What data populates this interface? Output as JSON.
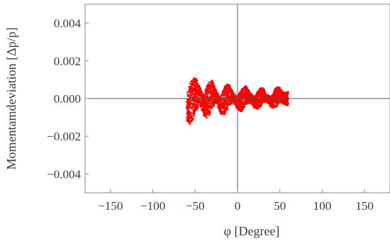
{
  "chart_data": {
    "type": "scatter",
    "xlabel": "φ [Degree]",
    "ylabel": "Momentamdeviation [Δp/p]",
    "xlim": [
      -180,
      180
    ],
    "ylim": [
      -0.005,
      0.005
    ],
    "x_ticks": [
      -150,
      -100,
      -50,
      0,
      50,
      100,
      150
    ],
    "x_tick_labels": [
      "−150",
      "−100",
      "−50",
      "0",
      "50",
      "100",
      "150"
    ],
    "y_ticks": [
      0.004,
      0.002,
      0.0,
      -0.002,
      -0.004
    ],
    "y_tick_labels": [
      "0.004",
      "0.002",
      "0.000",
      "−0.002",
      "−0.004"
    ],
    "marker_color": "#ff0000",
    "axis_color": "#555555",
    "grid": false,
    "series": [
      {
        "envelope": {
          "x": [
            -60,
            -55,
            -50,
            -45,
            -40,
            -35,
            -30,
            -25,
            -20,
            -15,
            -10,
            -5,
            0,
            5,
            10,
            15,
            20,
            25,
            30,
            35,
            40,
            45,
            50,
            55,
            60
          ],
          "y_upper": [
            0.0003,
            0.0009,
            0.0012,
            0.0007,
            0.0002,
            0.0008,
            0.001,
            0.0004,
            0.0001,
            0.0007,
            0.0008,
            0.0003,
            0.0001,
            0.0005,
            0.0007,
            0.0003,
            0.0001,
            0.0005,
            0.0006,
            0.0002,
            0.0001,
            0.0006,
            0.0006,
            0.0003,
            0.0004
          ],
          "y_lower": [
            -0.0012,
            -0.0014,
            -0.0008,
            -0.0003,
            -0.0009,
            -0.0011,
            -0.0005,
            -0.0002,
            -0.0008,
            -0.0009,
            -0.0004,
            -0.0002,
            -0.0006,
            -0.0007,
            -0.0003,
            -0.0002,
            -0.0005,
            -0.0006,
            -0.0002,
            -0.0002,
            -0.0005,
            -0.0005,
            -0.0002,
            -0.0003,
            -0.0004
          ]
        }
      }
    ]
  }
}
